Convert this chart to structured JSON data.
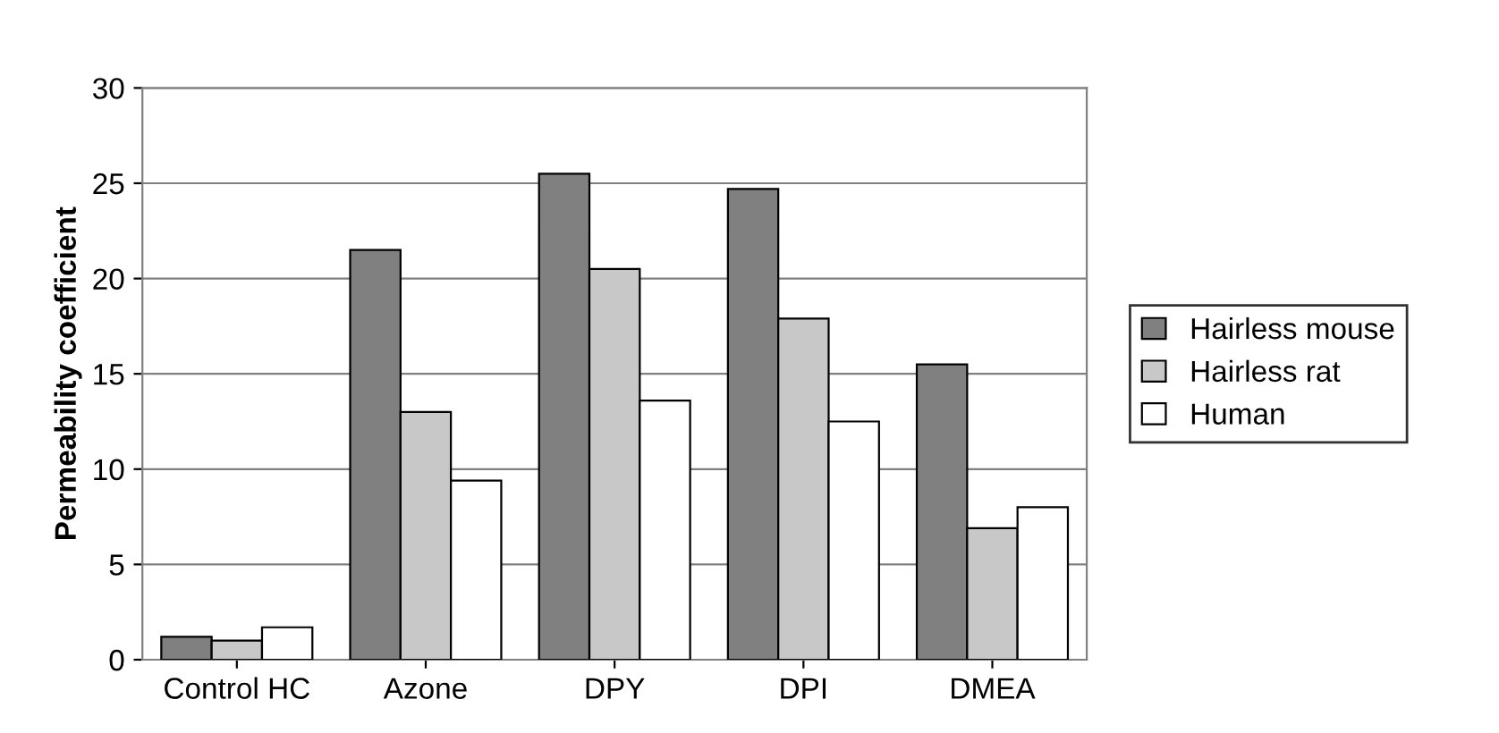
{
  "chart_data": {
    "type": "bar",
    "ylabel": "Permeability coefficient",
    "categories": [
      "Control HC",
      "Azone",
      "DPY",
      "DPI",
      "DMEA"
    ],
    "series": [
      {
        "name": "Hairless mouse",
        "color": "#808080",
        "values": [
          1.2,
          21.5,
          25.5,
          24.7,
          15.5
        ]
      },
      {
        "name": "Hairless rat",
        "color": "#c8c8c8",
        "values": [
          1.0,
          13.0,
          20.5,
          17.9,
          6.9
        ]
      },
      {
        "name": "Human",
        "color": "#ffffff",
        "values": [
          1.7,
          9.4,
          13.6,
          12.5,
          8.0
        ]
      }
    ],
    "ylim": [
      0,
      30
    ],
    "yticks": [
      0,
      5,
      10,
      15,
      20,
      25,
      30
    ],
    "grid": "y",
    "legend": "right"
  }
}
